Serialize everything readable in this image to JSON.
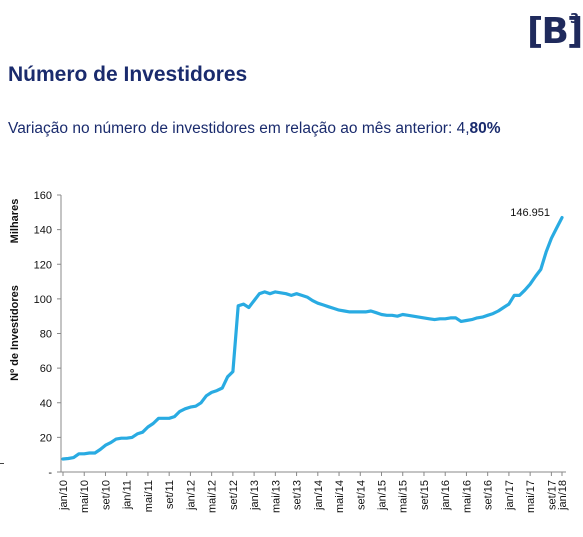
{
  "header": {
    "logo_text": "[B]",
    "logo_superscript": "3",
    "title": "Número de Investidores",
    "subtitle_prefix": "Variação no número de investidores em relação ao mês anterior: 4,",
    "subtitle_value": "80%"
  },
  "chart_data": {
    "type": "line",
    "ylabel_unit": "Milhares",
    "ylabel": "Nº de Investidores",
    "ylim": [
      0,
      160
    ],
    "yticks": [
      0,
      20,
      40,
      60,
      80,
      100,
      120,
      140,
      160
    ],
    "ytick_labels": [
      "-",
      "20",
      "40",
      "60",
      "80",
      "100",
      "120",
      "140",
      "160"
    ],
    "xtick_labels": [
      "jan/10",
      "mai/10",
      "set/10",
      "jan/11",
      "mai/11",
      "set/11",
      "jan/12",
      "mai/12",
      "set/12",
      "jan/13",
      "mai/13",
      "set/13",
      "jan/14",
      "mai/14",
      "set/14",
      "jan/15",
      "mai/15",
      "set/15",
      "jan/16",
      "mai/16",
      "set/16",
      "jan/17",
      "mai/17",
      "set/17",
      "jan/18"
    ],
    "annotation": "146.951",
    "color": "#29abe2",
    "series": [
      {
        "values": [
          7.5,
          7.8,
          8.3,
          10.5,
          10.5,
          11,
          11,
          13,
          15.5,
          17,
          19,
          19.5,
          19.5,
          20,
          22,
          23,
          26,
          28,
          31,
          31,
          31,
          32,
          35,
          36.5,
          37.5,
          38,
          40,
          44,
          46,
          47,
          48.5,
          55,
          58,
          96,
          97,
          95,
          99,
          103,
          104,
          103,
          104,
          103.5,
          103,
          102,
          103,
          102,
          101,
          99,
          97.5,
          96.5,
          95.5,
          94.5,
          93.5,
          93,
          92.5,
          92.5,
          92.5,
          92.5,
          93,
          92,
          91,
          90.5,
          90.5,
          90,
          91,
          90.5,
          90,
          89.5,
          89,
          88.5,
          88,
          88.5,
          88.5,
          89,
          89,
          87,
          87.5,
          88,
          89,
          89.5,
          90.5,
          91.5,
          93,
          95,
          97,
          102,
          102,
          105,
          108.5,
          113,
          117,
          127,
          135,
          141,
          146.951
        ]
      }
    ]
  }
}
